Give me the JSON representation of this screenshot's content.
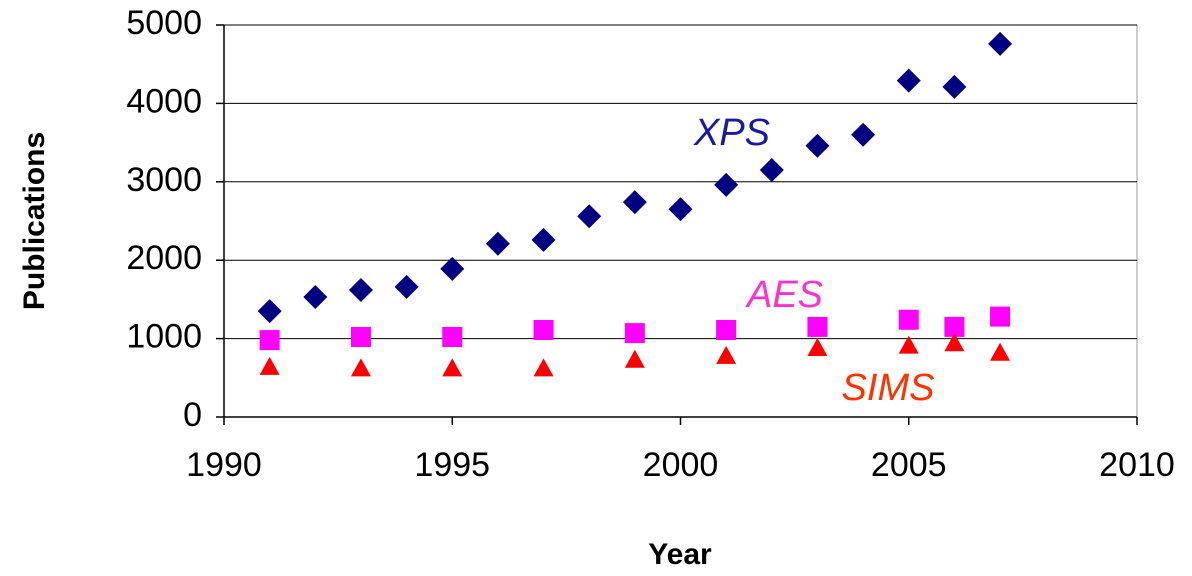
{
  "chart_data": {
    "type": "scatter",
    "x_label": "Year",
    "y_label": "Publications",
    "xlim": [
      1990,
      2010
    ],
    "xticks": [
      1990,
      1995,
      2000,
      2005,
      2010
    ],
    "ylim": [
      0,
      5000
    ],
    "yticks": [
      0,
      1000,
      2000,
      3000,
      4000,
      5000
    ],
    "grid": true,
    "series": [
      {
        "name": "XPS",
        "color": "#000080",
        "label_color": "#1a1aa0",
        "marker": "diamond",
        "x": [
          1991,
          1992,
          1993,
          1994,
          1995,
          1996,
          1997,
          1998,
          1999,
          2000,
          2001,
          2002,
          2003,
          2004,
          2005,
          2006,
          2007
        ],
        "values": [
          1350,
          1530,
          1620,
          1660,
          1890,
          2210,
          2260,
          2560,
          2740,
          2650,
          2960,
          3150,
          3460,
          3600,
          4290,
          4210,
          4760
        ]
      },
      {
        "name": "AES",
        "color": "#ff00ff",
        "label_color": "#ff33cc",
        "marker": "square",
        "x": [
          1991,
          1993,
          1995,
          1997,
          1999,
          2001,
          2003,
          2005,
          2006,
          2007
        ],
        "values": [
          980,
          1020,
          1020,
          1110,
          1070,
          1110,
          1150,
          1240,
          1150,
          1280
        ]
      },
      {
        "name": "SIMS",
        "color": "#ff0000",
        "label_color": "#ff3300",
        "marker": "triangle",
        "x": [
          1991,
          1993,
          1995,
          1997,
          1999,
          2001,
          2003,
          2005,
          2006,
          2007
        ],
        "values": [
          640,
          620,
          620,
          620,
          730,
          780,
          880,
          910,
          940,
          820
        ]
      }
    ]
  }
}
